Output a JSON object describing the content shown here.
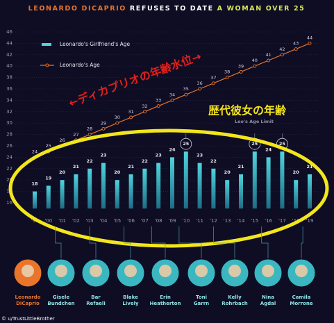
{
  "chart_data": {
    "type": "bar_line",
    "title_parts": [
      "LEONARDO DICAPRIO",
      "REFUSES TO DATE",
      "A WOMAN OVER 25"
    ],
    "categories": [
      "'99",
      "'00",
      "'01",
      "'02",
      "'03",
      "'04",
      "'05",
      "'06",
      "'07",
      "'08",
      "'09",
      "'10",
      "'11",
      "'12",
      "'13",
      "'14",
      "'15",
      "'16",
      "'17",
      "'18",
      "'19"
    ],
    "series": [
      {
        "name": "Leonardo's Girlfriend's Age",
        "color": "#4fd4dc",
        "values": [
          18,
          19,
          20,
          21,
          22,
          23,
          20,
          21,
          22,
          23,
          24,
          25,
          23,
          22,
          20,
          21,
          25,
          24,
          25,
          20,
          21
        ]
      },
      {
        "name": "Leonardo's Age",
        "color": "#e8752a",
        "values": [
          24,
          25,
          26,
          27,
          28,
          29,
          30,
          31,
          32,
          33,
          34,
          35,
          36,
          37,
          38,
          39,
          40,
          41,
          42,
          43,
          44
        ]
      }
    ],
    "ylim": [
      15,
      47
    ],
    "yticks": [
      16,
      18,
      20,
      22,
      24,
      26,
      28,
      30,
      32,
      34,
      36,
      38,
      40,
      42,
      44,
      46
    ],
    "grid": true,
    "age_limit_label": "Leo's Age Limit",
    "annotations": [
      "←ディカプリオの年齢水位→",
      "歴代彼女の年齢"
    ],
    "people": [
      [
        "Leonardo",
        "DiCaprio"
      ],
      [
        "Gisele",
        "Bundchen"
      ],
      [
        "Bar",
        "Refaeli"
      ],
      [
        "Blake",
        "Lively"
      ],
      [
        "Erin",
        "Heatherton"
      ],
      [
        "Toni",
        "Garrn"
      ],
      [
        "Kelly",
        "Rohrbach"
      ],
      [
        "Nina",
        "Agdal"
      ],
      [
        "Camila",
        "Morrone"
      ]
    ],
    "credit": "© u/TrustLittleBrother"
  }
}
